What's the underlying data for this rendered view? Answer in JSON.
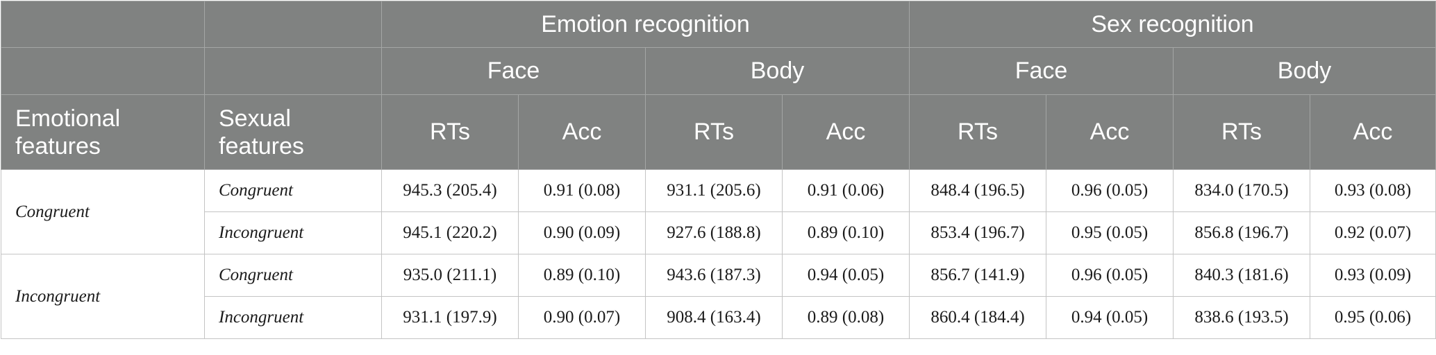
{
  "header": {
    "emotion_recognition": "Emotion recognition",
    "sex_recognition": "Sex recognition",
    "face": "Face",
    "body": "Body",
    "rts": "RTs",
    "acc": "Acc",
    "emotional_features_line1": "Emotional",
    "emotional_features_line2": "features",
    "sexual_features_line1": "Sexual",
    "sexual_features_line2": "features"
  },
  "groups": [
    {
      "label": "Congruent",
      "rows": [
        {
          "label": "Congruent",
          "values": [
            "945.3 (205.4)",
            "0.91 (0.08)",
            "931.1 (205.6)",
            "0.91 (0.06)",
            "848.4 (196.5)",
            "0.96 (0.05)",
            "834.0 (170.5)",
            "0.93 (0.08)"
          ]
        },
        {
          "label": "Incongruent",
          "values": [
            "945.1 (220.2)",
            "0.90 (0.09)",
            "927.6 (188.8)",
            "0.89 (0.10)",
            "853.4 (196.7)",
            "0.95 (0.05)",
            "856.8 (196.7)",
            "0.92 (0.07)"
          ]
        }
      ]
    },
    {
      "label": "Incongruent",
      "rows": [
        {
          "label": "Congruent",
          "values": [
            "935.0 (211.1)",
            "0.89 (0.10)",
            "943.6 (187.3)",
            "0.94 (0.05)",
            "856.7 (141.9)",
            "0.96 (0.05)",
            "840.3 (181.6)",
            "0.93 (0.09)"
          ]
        },
        {
          "label": "Incongruent",
          "values": [
            "931.1 (197.9)",
            "0.90 (0.07)",
            "908.4 (163.4)",
            "0.89 (0.08)",
            "860.4 (184.4)",
            "0.94 (0.05)",
            "838.6 (193.5)",
            "0.95 (0.06)"
          ]
        }
      ]
    }
  ]
}
